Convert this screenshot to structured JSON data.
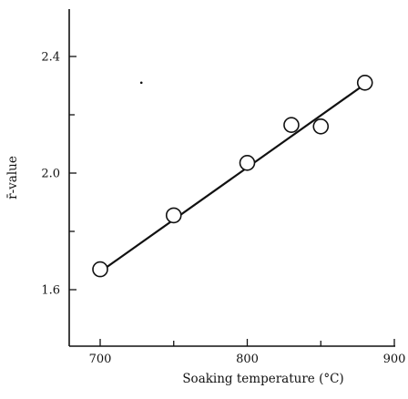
{
  "chart_data": {
    "type": "scatter",
    "xlabel": "Soaking temperature (°C)",
    "ylabel": "r̄-value",
    "xlim": [
      680,
      900
    ],
    "ylim": [
      1.4,
      2.6
    ],
    "xticks": [
      {
        "value": 700,
        "label": "700"
      },
      {
        "value": 800,
        "label": "800"
      },
      {
        "value": 900,
        "label": "900"
      }
    ],
    "xminor": [
      750,
      850
    ],
    "yticks": [
      {
        "value": 1.6,
        "label": "1.6"
      },
      {
        "value": 2.0,
        "label": "2.0"
      },
      {
        "value": 2.4,
        "label": "2.4"
      }
    ],
    "yminor": [
      1.8,
      2.2
    ],
    "grid": false,
    "legend": "none",
    "series": [
      {
        "points": [
          {
            "x": 700,
            "y": 1.67
          },
          {
            "x": 750,
            "y": 1.855
          },
          {
            "x": 800,
            "y": 2.035
          },
          {
            "x": 830,
            "y": 2.165
          },
          {
            "x": 850,
            "y": 2.16
          },
          {
            "x": 880,
            "y": 2.31
          }
        ],
        "fit": [
          {
            "x": 701,
            "y": 1.665
          },
          {
            "x": 880,
            "y": 2.305
          }
        ]
      }
    ],
    "marks": [
      {
        "x": 728,
        "y": 2.31
      }
    ]
  }
}
